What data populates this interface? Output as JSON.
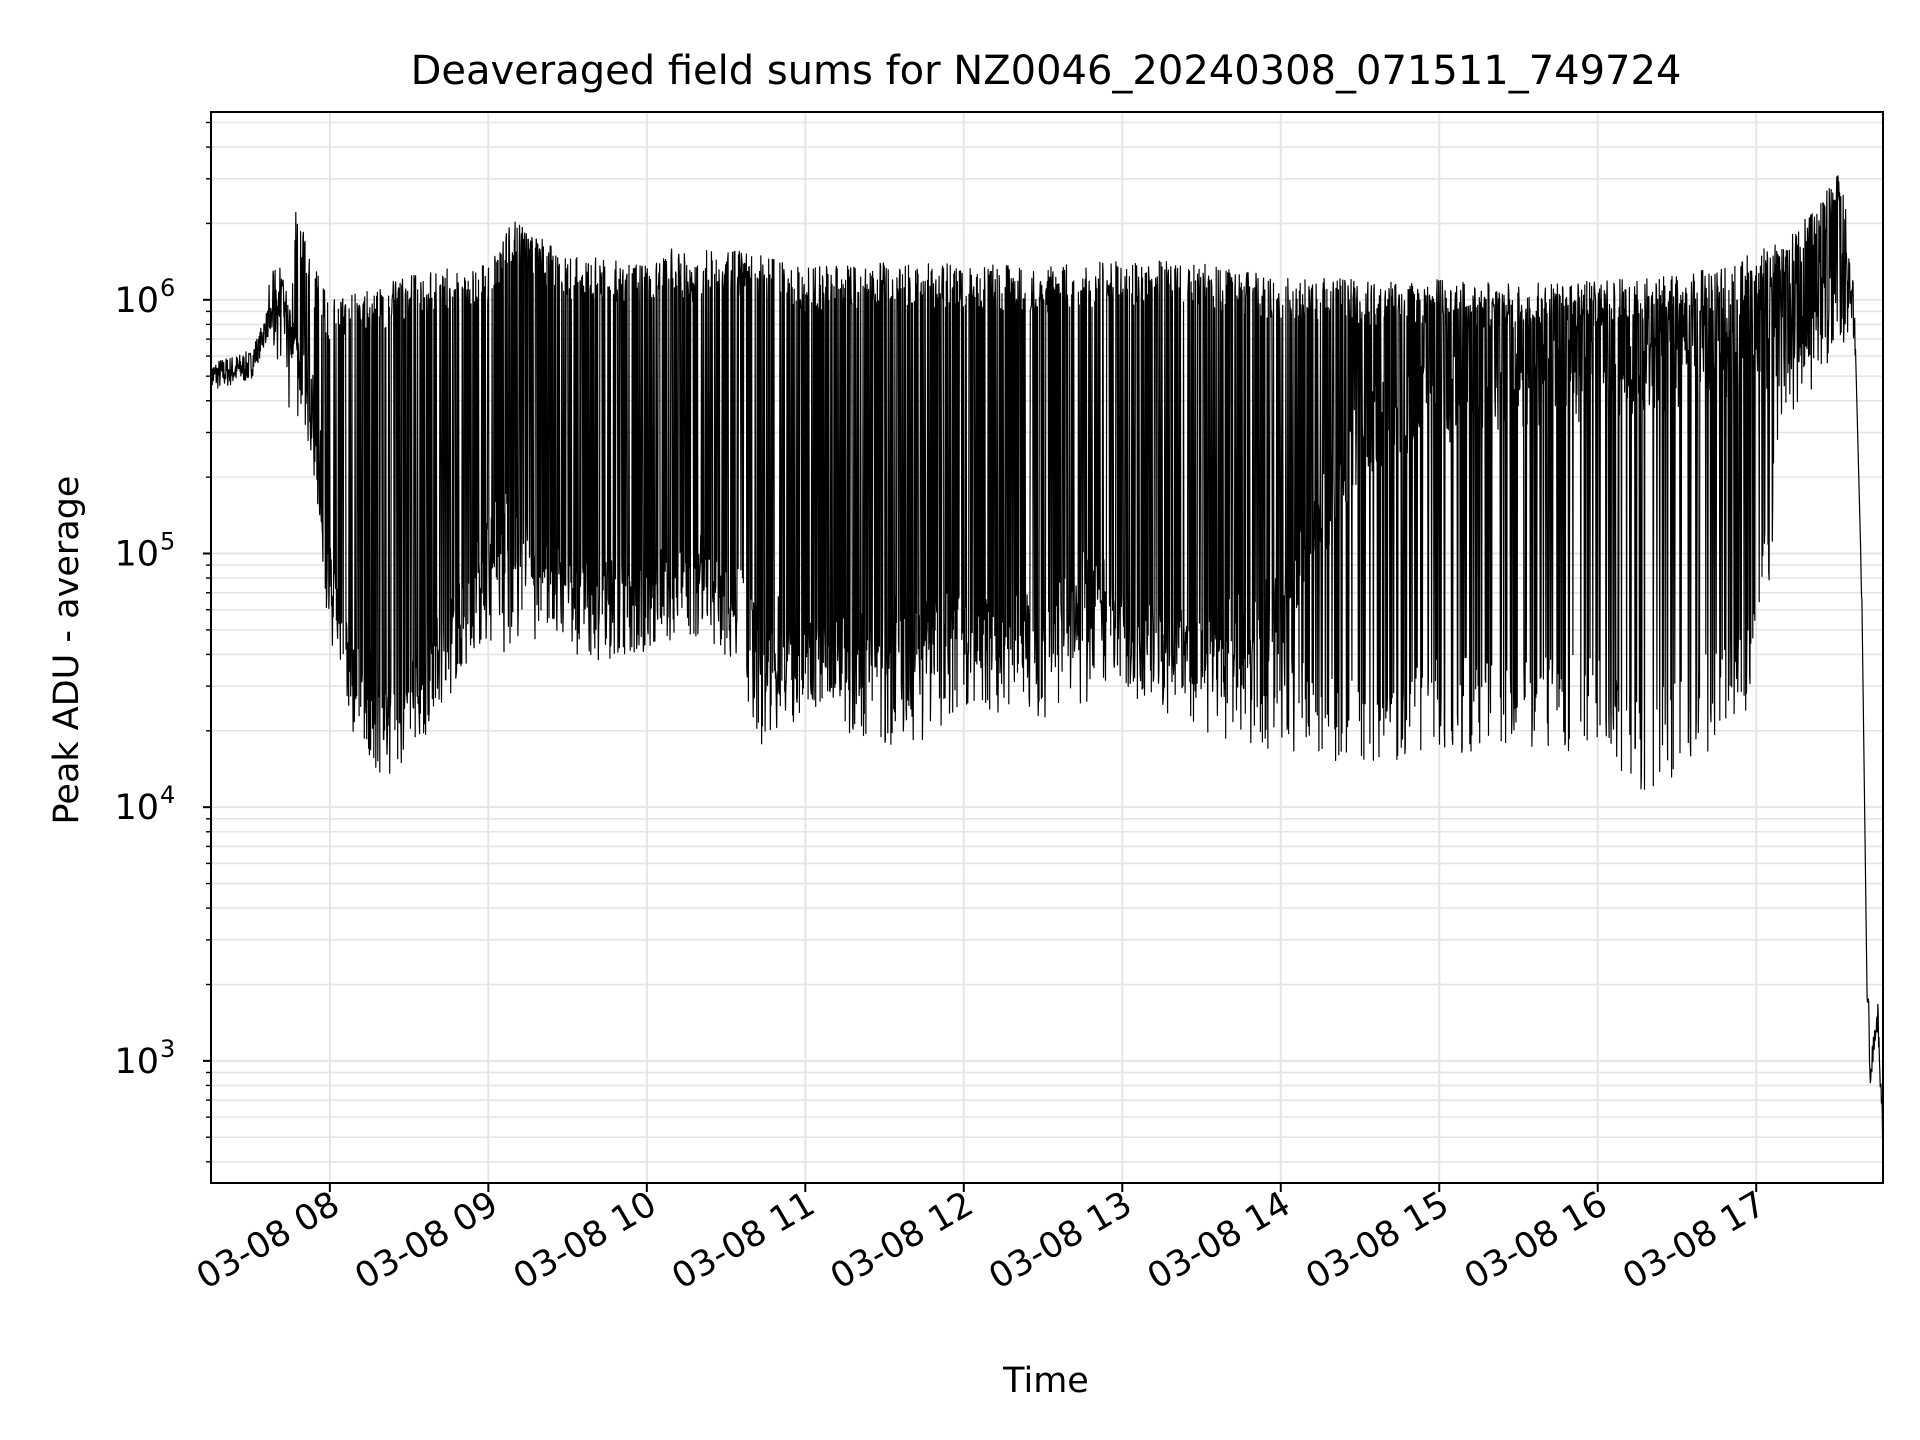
{
  "chart_data": {
    "type": "line",
    "title": "Deaveraged field sums for NZ0046_20240308_071511_749724",
    "xlabel": "Time",
    "ylabel": "Peak ADU - average",
    "yscale": "log",
    "ylim": [
      330,
      5500000
    ],
    "xlim": [
      "2024-03-08 07:15",
      "2024-03-08 17:48"
    ],
    "grid": true,
    "grid_minor": true,
    "line_color": "#000000",
    "grid_color": "#e5e5e5",
    "x_ticks": [
      {
        "value": "2024-03-08 08:00",
        "label": "03-08 08"
      },
      {
        "value": "2024-03-08 09:00",
        "label": "03-08 09"
      },
      {
        "value": "2024-03-08 10:00",
        "label": "03-08 10"
      },
      {
        "value": "2024-03-08 11:00",
        "label": "03-08 11"
      },
      {
        "value": "2024-03-08 12:00",
        "label": "03-08 12"
      },
      {
        "value": "2024-03-08 13:00",
        "label": "03-08 13"
      },
      {
        "value": "2024-03-08 14:00",
        "label": "03-08 14"
      },
      {
        "value": "2024-03-08 15:00",
        "label": "03-08 15"
      },
      {
        "value": "2024-03-08 16:00",
        "label": "03-08 16"
      },
      {
        "value": "2024-03-08 17:00",
        "label": "03-08 17"
      }
    ],
    "y_ticks": [
      {
        "value": 1000,
        "base": "10",
        "exp": "3"
      },
      {
        "value": 10000,
        "base": "10",
        "exp": "4"
      },
      {
        "value": 100000,
        "base": "10",
        "exp": "5"
      },
      {
        "value": 1000000,
        "base": "10",
        "exp": "6"
      }
    ],
    "series": [
      {
        "high": [
          [
            "2024-03-08 07:15",
            480000
          ],
          [
            "2024-03-08 07:25",
            650000
          ],
          [
            "2024-03-08 07:33",
            620000
          ],
          [
            "2024-03-08 07:38",
            1150000
          ],
          [
            "2024-03-08 07:42",
            1200000
          ],
          [
            "2024-03-08 07:45",
            900000
          ],
          [
            "2024-03-08 07:47",
            2300000
          ],
          [
            "2024-03-08 07:55",
            1300000
          ],
          [
            "2024-03-08 08:00",
            1000000
          ],
          [
            "2024-03-08 08:15",
            1100000
          ],
          [
            "2024-03-08 08:30",
            1250000
          ],
          [
            "2024-03-08 08:45",
            1350000
          ],
          [
            "2024-03-08 09:00",
            1450000
          ],
          [
            "2024-03-08 09:08",
            2100000
          ],
          [
            "2024-03-08 09:30",
            1500000
          ],
          [
            "2024-03-08 10:00",
            1400000
          ],
          [
            "2024-03-08 10:10",
            1600000
          ],
          [
            "2024-03-08 10:20",
            1450000
          ],
          [
            "2024-03-08 10:23",
            1700000
          ],
          [
            "2024-03-08 11:00",
            1350000
          ],
          [
            "2024-03-08 11:30",
            1400000
          ],
          [
            "2024-03-08 12:00",
            1400000
          ],
          [
            "2024-03-08 12:30",
            1350000
          ],
          [
            "2024-03-08 13:00",
            1450000
          ],
          [
            "2024-03-08 13:30",
            1400000
          ],
          [
            "2024-03-08 14:00",
            1250000
          ],
          [
            "2024-03-08 14:30",
            1200000
          ],
          [
            "2024-03-08 15:00",
            1200000
          ],
          [
            "2024-03-08 15:30",
            1150000
          ],
          [
            "2024-03-08 16:00",
            1200000
          ],
          [
            "2024-03-08 16:30",
            1250000
          ],
          [
            "2024-03-08 16:50",
            1400000
          ],
          [
            "2024-03-08 17:10",
            1700000
          ],
          [
            "2024-03-08 17:25",
            2500000
          ],
          [
            "2024-03-08 17:33",
            3500000
          ],
          [
            "2024-03-08 17:35",
            1300000
          ],
          [
            "2024-03-08 17:37",
            1000000
          ],
          [
            "2024-03-08 17:40",
            60000
          ],
          [
            "2024-03-08 17:42",
            1500
          ],
          [
            "2024-03-08 17:45",
            2000
          ],
          [
            "2024-03-08 17:48",
            900
          ]
        ],
        "low": [
          [
            "2024-03-08 07:15",
            420000
          ],
          [
            "2024-03-08 07:25",
            450000
          ],
          [
            "2024-03-08 07:35",
            500000
          ],
          [
            "2024-03-08 07:42",
            600000
          ],
          [
            "2024-03-08 07:46",
            260000
          ],
          [
            "2024-03-08 07:50",
            400000
          ],
          [
            "2024-03-08 07:55",
            200000
          ],
          [
            "2024-03-08 08:00",
            40000
          ],
          [
            "2024-03-08 08:10",
            20000
          ],
          [
            "2024-03-08 08:20",
            14000
          ],
          [
            "2024-03-08 08:25",
            13000
          ],
          [
            "2024-03-08 08:40",
            25000
          ],
          [
            "2024-03-08 09:00",
            40000
          ],
          [
            "2024-03-08 09:30",
            40000
          ],
          [
            "2024-03-08 10:00",
            40000
          ],
          [
            "2024-03-08 10:30",
            40000
          ],
          [
            "2024-03-08 10:40",
            17000
          ],
          [
            "2024-03-08 11:00",
            22000
          ],
          [
            "2024-03-08 11:30",
            18000
          ],
          [
            "2024-03-08 11:40",
            16000
          ],
          [
            "2024-03-08 12:00",
            25000
          ],
          [
            "2024-03-08 12:30",
            22000
          ],
          [
            "2024-03-08 13:00",
            28000
          ],
          [
            "2024-03-08 13:30",
            20000
          ],
          [
            "2024-03-08 14:00",
            16000
          ],
          [
            "2024-03-08 14:30",
            14000
          ],
          [
            "2024-03-08 14:40",
            13000
          ],
          [
            "2024-03-08 15:00",
            16000
          ],
          [
            "2024-03-08 15:30",
            17000
          ],
          [
            "2024-03-08 16:00",
            16000
          ],
          [
            "2024-03-08 16:20",
            11000
          ],
          [
            "2024-03-08 16:40",
            16000
          ],
          [
            "2024-03-08 17:00",
            25000
          ],
          [
            "2024-03-08 17:05",
            70000
          ],
          [
            "2024-03-08 17:10",
            300000
          ],
          [
            "2024-03-08 17:30",
            600000
          ],
          [
            "2024-03-08 17:37",
            800000
          ],
          [
            "2024-03-08 17:40",
            25000
          ],
          [
            "2024-03-08 17:42",
            700
          ],
          [
            "2024-03-08 17:45",
            900
          ],
          [
            "2024-03-08 17:48",
            500
          ]
        ],
        "base": [
          [
            "2024-03-08 07:15",
            500000
          ],
          [
            "2024-03-08 07:30",
            550000
          ],
          [
            "2024-03-08 07:40",
            1000000
          ],
          [
            "2024-03-08 07:50",
            450000
          ],
          [
            "2024-03-08 08:00",
            80000
          ],
          [
            "2024-03-08 08:10",
            25000
          ],
          [
            "2024-03-08 08:25",
            18000
          ],
          [
            "2024-03-08 08:45",
            40000
          ],
          [
            "2024-03-08 09:05",
            130000
          ],
          [
            "2024-03-08 09:20",
            80000
          ],
          [
            "2024-03-08 09:40",
            55000
          ],
          [
            "2024-03-08 10:00",
            60000
          ],
          [
            "2024-03-08 10:15",
            90000
          ],
          [
            "2024-03-08 10:30",
            65000
          ],
          [
            "2024-03-08 10:45",
            50000
          ],
          [
            "2024-03-08 11:00",
            38000
          ],
          [
            "2024-03-08 11:30",
            45000
          ],
          [
            "2024-03-08 12:00",
            50000
          ],
          [
            "2024-03-08 12:30",
            45000
          ],
          [
            "2024-03-08 12:50",
            80000
          ],
          [
            "2024-03-08 13:00",
            45000
          ],
          [
            "2024-03-08 13:30",
            40000
          ],
          [
            "2024-03-08 14:00",
            60000
          ],
          [
            "2024-03-08 14:30",
            300000
          ],
          [
            "2024-03-08 15:00",
            400000
          ],
          [
            "2024-03-08 15:30",
            450000
          ],
          [
            "2024-03-08 16:00",
            500000
          ],
          [
            "2024-03-08 16:30",
            550000
          ],
          [
            "2024-03-08 17:00",
            600000
          ],
          [
            "2024-03-08 17:20",
            900000
          ],
          [
            "2024-03-08 17:35",
            1100000
          ],
          [
            "2024-03-08 17:38",
            700000
          ],
          [
            "2024-03-08 17:41",
            20000
          ],
          [
            "2024-03-08 17:43",
            900
          ],
          [
            "2024-03-08 17:46",
            1500
          ],
          [
            "2024-03-08 17:48",
            500
          ]
        ]
      }
    ]
  }
}
